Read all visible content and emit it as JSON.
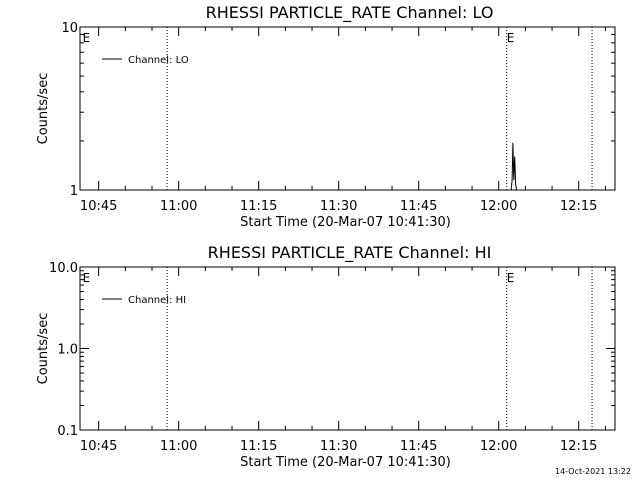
{
  "chart_data": [
    {
      "type": "line",
      "title": "RHESSI PARTICLE_RATE Channel: LO",
      "xlabel": "Start Time (20-Mar-07 10:41:30)",
      "ylabel": "Counts/sec",
      "yscale": "log",
      "ylim": [
        1,
        10
      ],
      "yticks": [
        "1",
        "10"
      ],
      "xticks": [
        "10:45",
        "11:00",
        "11:15",
        "11:30",
        "11:45",
        "12:00",
        "12:15"
      ],
      "grid": false,
      "legend": "top-left",
      "series": [
        {
          "name": "Channel: LO",
          "x": [
            "12:02:20",
            "12:02:30",
            "12:02:40",
            "12:02:50",
            "12:03:00",
            "12:03:10",
            "12:03:20"
          ],
          "values": [
            1,
            1.15,
            1.95,
            1.15,
            1.6,
            1.1,
            1
          ]
        }
      ],
      "markers": [
        {
          "label": "E",
          "time": "10:42:00"
        },
        {
          "label": "E",
          "time": "12:01:30"
        }
      ],
      "vlines": [
        "10:57:50",
        "12:01:30",
        "12:17:30"
      ]
    },
    {
      "type": "line",
      "title": "RHESSI PARTICLE_RATE Channel: HI",
      "xlabel": "Start Time (20-Mar-07 10:41:30)",
      "ylabel": "Counts/sec",
      "yscale": "log",
      "ylim": [
        0.1,
        10
      ],
      "yticks": [
        "0.1",
        "1.0",
        "10.0"
      ],
      "xticks": [
        "10:45",
        "11:00",
        "11:15",
        "11:30",
        "11:45",
        "12:00",
        "12:15"
      ],
      "grid": false,
      "legend": "top-left",
      "series": [
        {
          "name": "Channel: HI",
          "x": [],
          "values": []
        }
      ],
      "markers": [
        {
          "label": "E",
          "time": "10:42:00"
        },
        {
          "label": "E",
          "time": "12:01:30"
        }
      ],
      "vlines": [
        "10:57:50",
        "12:01:30",
        "12:17:30"
      ]
    }
  ],
  "footer": {
    "timestamp": "14-Oct-2021 13:22"
  },
  "colors": {
    "background": "#ffffff",
    "foreground": "#000000"
  }
}
